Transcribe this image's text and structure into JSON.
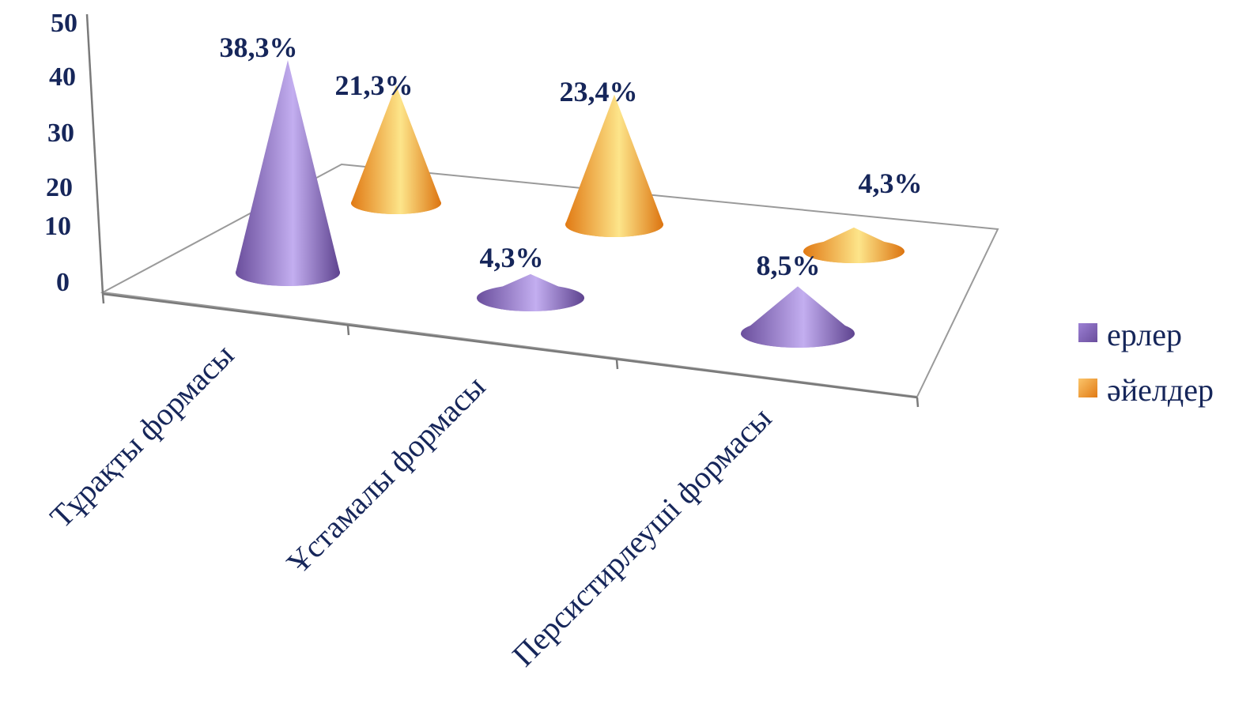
{
  "chart_data": {
    "type": "bar",
    "variant": "3d-cone",
    "title": "",
    "categories": [
      "Тұрақты формасы",
      "Ұстамалы формасы",
      "Персистирлеуші формасы"
    ],
    "series": [
      {
        "name": "ерлер",
        "color": "#8e6fc4",
        "values": [
          38.3,
          4.3,
          8.5
        ],
        "labels": [
          "38,3%",
          "4,3%",
          "8,5%"
        ]
      },
      {
        "name": "әйелдер",
        "color": "#f3a03a",
        "values": [
          21.3,
          23.4,
          4.3
        ],
        "labels": [
          "21,3%",
          "23,4%",
          "4,3%"
        ]
      }
    ],
    "ylim": [
      0,
      50
    ],
    "yticks": [
      "0",
      "10",
      "20",
      "30",
      "40",
      "50"
    ],
    "legend_position": "right",
    "grid": false
  }
}
